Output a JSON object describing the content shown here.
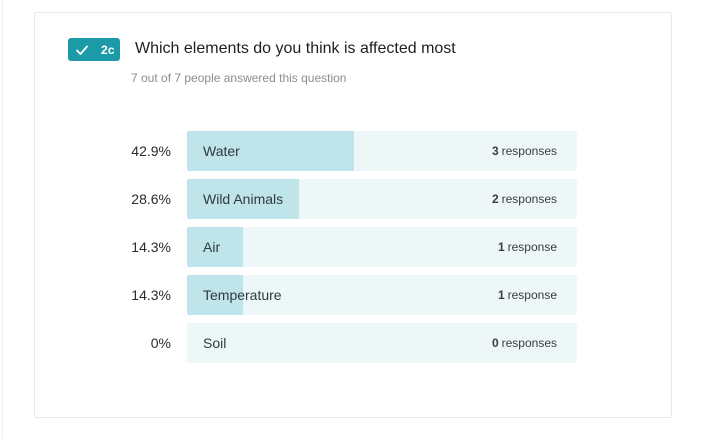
{
  "question": {
    "badge_number": "2c",
    "title": "Which elements do you think is affected most",
    "answered_text": "7 out of 7 people answered this question",
    "accent_color": "#1d9aa8",
    "bar_fill_color": "#bfe4ea",
    "bar_track_color": "#edf7f8"
  },
  "results": [
    {
      "percent": "42.9%",
      "fraction": 0.429,
      "label": "Water",
      "count": "3",
      "unit": "responses"
    },
    {
      "percent": "28.6%",
      "fraction": 0.286,
      "label": "Wild Animals",
      "count": "2",
      "unit": "responses"
    },
    {
      "percent": "14.3%",
      "fraction": 0.143,
      "label": "Air",
      "count": "1",
      "unit": "response"
    },
    {
      "percent": "14.3%",
      "fraction": 0.143,
      "label": "Temperature",
      "count": "1",
      "unit": "response"
    },
    {
      "percent": "0%",
      "fraction": 0,
      "label": "Soil",
      "count": "0",
      "unit": "responses"
    }
  ]
}
